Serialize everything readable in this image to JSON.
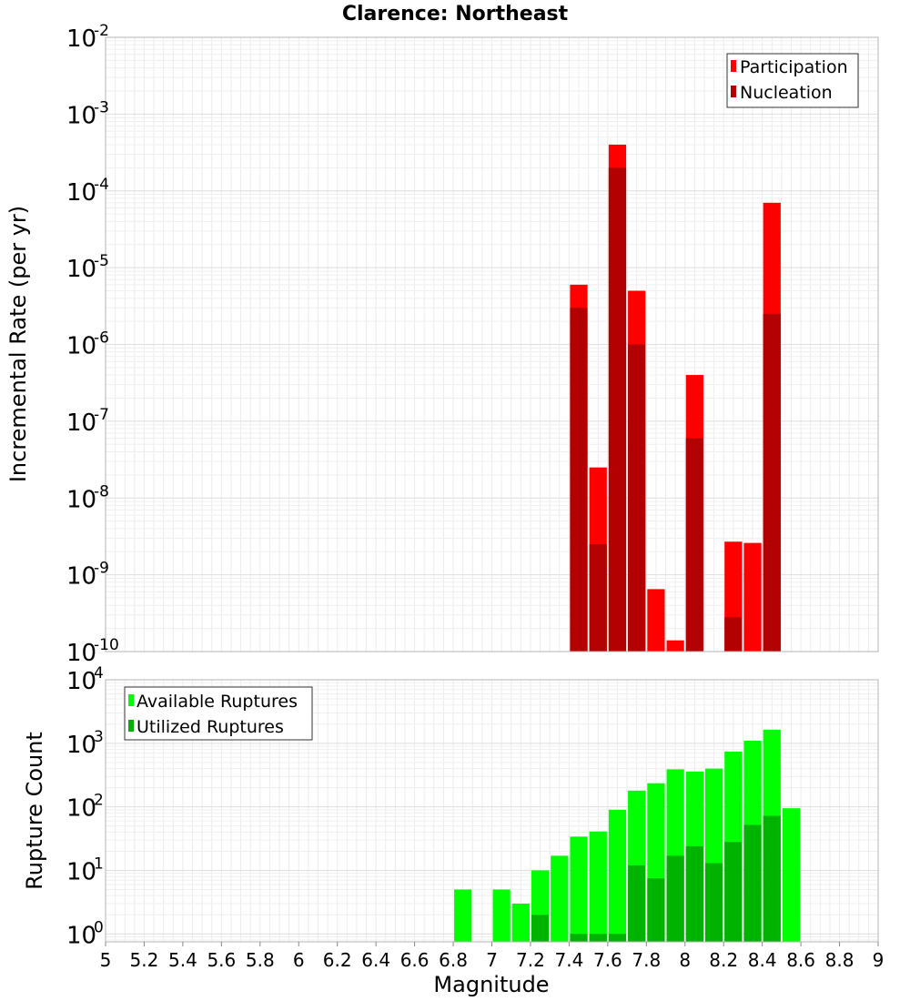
{
  "title": "Clarence: Northeast",
  "xlabel": "Magnitude",
  "x_ticks": [
    "5",
    "5.2",
    "5.4",
    "5.6",
    "5.8",
    "6",
    "6.2",
    "6.4",
    "6.6",
    "6.8",
    "7",
    "7.2",
    "7.4",
    "7.6",
    "7.8",
    "8",
    "8.2",
    "8.4",
    "8.6",
    "8.8",
    "9"
  ],
  "colors": {
    "participation": "#ff0000",
    "nucleation": "#b30000",
    "available": "#00ff00",
    "utilized": "#00b300"
  },
  "chart_data": [
    {
      "type": "bar",
      "ylabel": "Incremental Rate (per yr)",
      "y_scale": "log",
      "xlim": [
        5,
        9
      ],
      "ylim": [
        1e-10,
        0.01
      ],
      "y_ticks": [
        {
          "base": "10",
          "exp": "-2"
        },
        {
          "base": "10",
          "exp": "-3"
        },
        {
          "base": "10",
          "exp": "-4"
        },
        {
          "base": "10",
          "exp": "-5"
        },
        {
          "base": "10",
          "exp": "-6"
        },
        {
          "base": "10",
          "exp": "-7"
        },
        {
          "base": "10",
          "exp": "-8"
        },
        {
          "base": "10",
          "exp": "-9"
        },
        {
          "base": "10",
          "exp": "-10"
        }
      ],
      "legend": {
        "position": "top-right"
      },
      "x": [
        7.45,
        7.55,
        7.65,
        7.75,
        7.85,
        7.95,
        8.05,
        8.15,
        8.25,
        8.35,
        8.45
      ],
      "series": [
        {
          "name": "Participation",
          "values": [
            6e-06,
            2.5e-08,
            0.0004,
            5e-06,
            6.5e-10,
            1.4e-10,
            4e-07,
            null,
            2.7e-09,
            2.6e-09,
            7e-05
          ]
        },
        {
          "name": "Nucleation",
          "values": [
            3e-06,
            2.5e-09,
            0.0002,
            1e-06,
            null,
            null,
            6e-08,
            null,
            2.8e-10,
            null,
            2.5e-06
          ]
        }
      ]
    },
    {
      "type": "bar",
      "ylabel": "Rupture Count",
      "y_scale": "log",
      "xlim": [
        5,
        9
      ],
      "ylim": [
        0.75,
        10000
      ],
      "y_ticks": [
        {
          "base": "10",
          "exp": "4"
        },
        {
          "base": "10",
          "exp": "3"
        },
        {
          "base": "10",
          "exp": "2"
        },
        {
          "base": "10",
          "exp": "1"
        },
        {
          "base": "10",
          "exp": "0"
        }
      ],
      "legend": {
        "position": "top-left"
      },
      "x": [
        6.85,
        6.95,
        7.05,
        7.15,
        7.25,
        7.35,
        7.45,
        7.55,
        7.65,
        7.75,
        7.85,
        7.95,
        8.05,
        8.15,
        8.25,
        8.35,
        8.45,
        8.55
      ],
      "series": [
        {
          "name": "Available Ruptures",
          "values": [
            5,
            null,
            5,
            3,
            10,
            17,
            34,
            41,
            90,
            180,
            235,
            390,
            360,
            400,
            740,
            1100,
            1640,
            95
          ]
        },
        {
          "name": "Utilized Ruptures",
          "values": [
            null,
            null,
            null,
            null,
            2,
            null,
            1,
            1,
            1,
            12,
            7.5,
            17,
            24,
            13,
            28,
            52,
            72,
            null
          ]
        }
      ]
    }
  ]
}
